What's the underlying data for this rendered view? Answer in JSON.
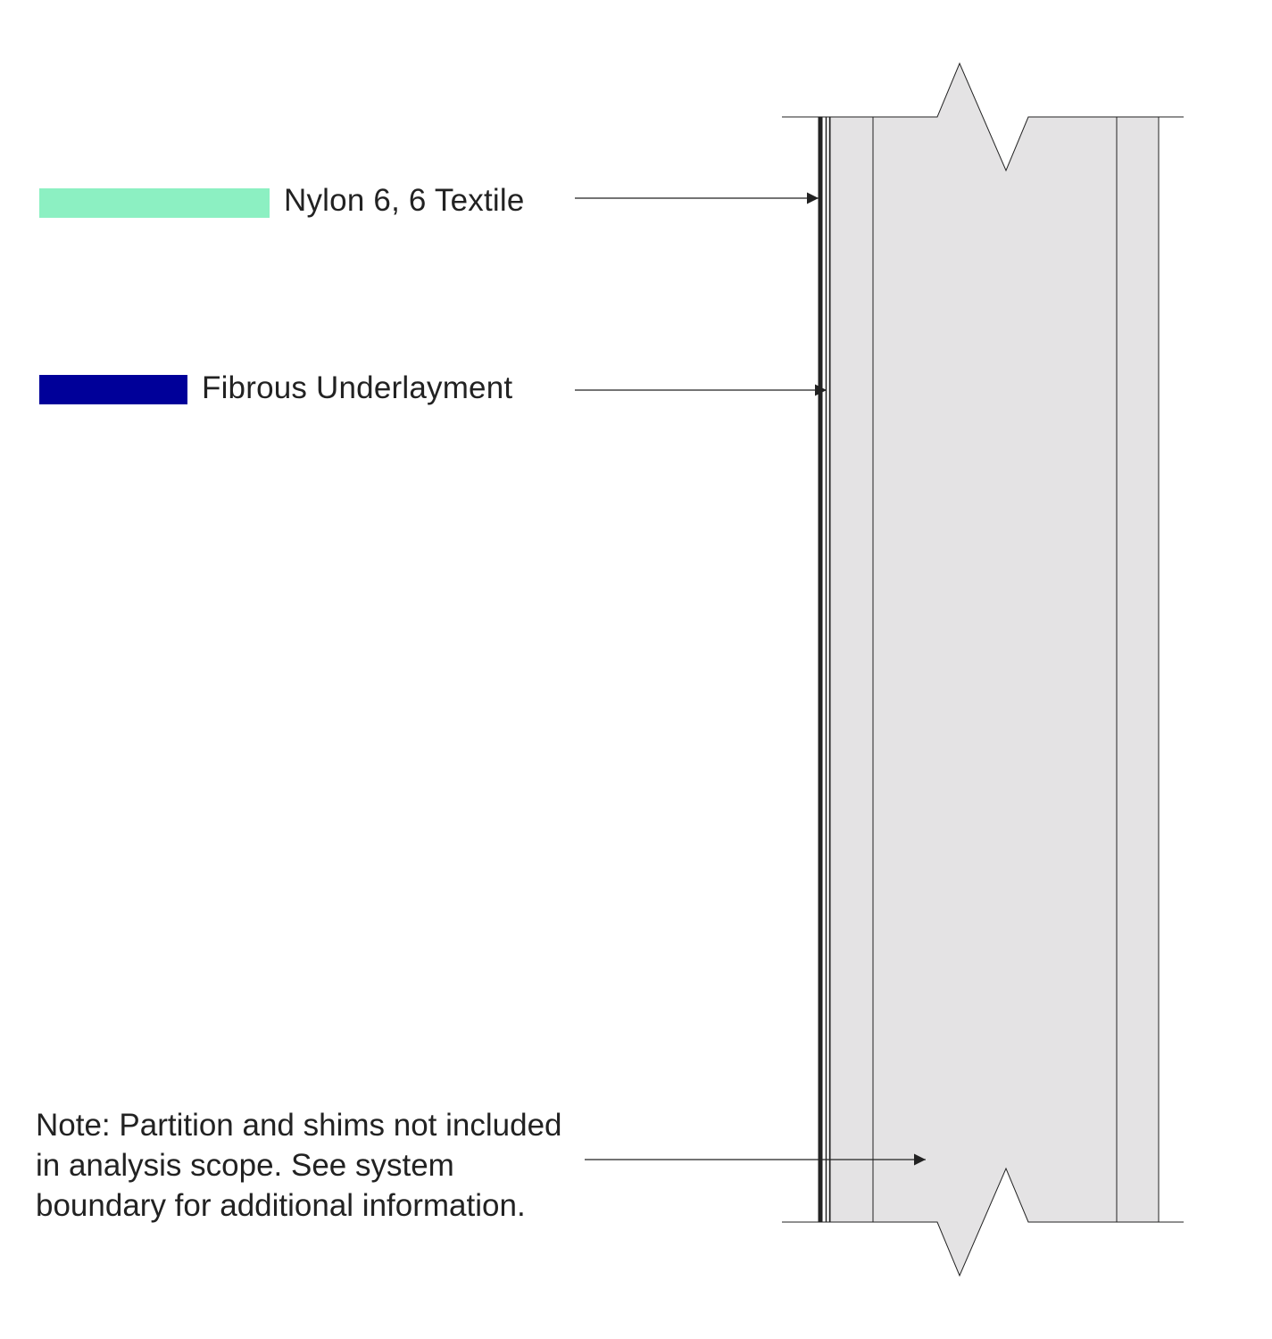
{
  "legend": {
    "items": [
      {
        "label": "Nylon 6, 6 Textile",
        "color": "#8cf0c2"
      },
      {
        "label": "Fibrous Underlayment",
        "color": "#000099"
      }
    ]
  },
  "note": {
    "text": "Note: Partition and shims not included in analysis scope. See system boundary for additional information."
  },
  "colors": {
    "wall_fill": "#e4e3e4",
    "line": "#222222",
    "background": "#ffffff"
  },
  "icons": {
    "leader_arrowhead": "arrowhead-right-icon"
  }
}
